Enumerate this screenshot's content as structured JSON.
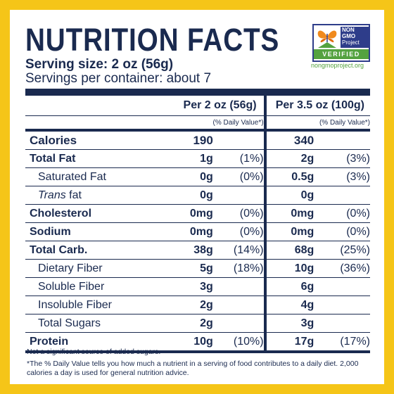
{
  "title": "NUTRITION FACTS",
  "serving_size": "Serving size: 2 oz (56g)",
  "servings_per": "Servings per container: about 7",
  "badge": {
    "line1": "NON",
    "line2": "GMO",
    "line3": "Project",
    "verified": "VERIFIED",
    "url": "nongmoproject.org",
    "colors": {
      "blue": "#2e3d8a",
      "green": "#54a23f",
      "orange": "#f08a1d"
    }
  },
  "columns": {
    "col1": "Per 2 oz (56g)",
    "col2": "Per 3.5 oz (100g)",
    "dv": "(% Daily Value*)"
  },
  "rows": [
    {
      "name": "Calories",
      "a1": "190",
      "d1": "",
      "a2": "340",
      "d2": ""
    },
    {
      "name": "Total Fat",
      "a1": "1g",
      "d1": "(1%)",
      "a2": "2g",
      "d2": "(3%)"
    },
    {
      "name": "Saturated Fat",
      "a1": "0g",
      "d1": "(0%)",
      "a2": "0.5g",
      "d2": "(3%)"
    },
    {
      "name_italic": "Trans",
      "name_rest": " fat",
      "a1": "0g",
      "d1": "",
      "a2": "0g",
      "d2": ""
    },
    {
      "name": "Cholesterol",
      "a1": "0mg",
      "d1": "(0%)",
      "a2": "0mg",
      "d2": "(0%)"
    },
    {
      "name": "Sodium",
      "a1": "0mg",
      "d1": "(0%)",
      "a2": "0mg",
      "d2": "(0%)"
    },
    {
      "name": "Total Carb.",
      "a1": "38g",
      "d1": "(14%)",
      "a2": "68g",
      "d2": "(25%)"
    },
    {
      "name": "Dietary Fiber",
      "a1": "5g",
      "d1": "(18%)",
      "a2": "10g",
      "d2": "(36%)"
    },
    {
      "name": "Soluble Fiber",
      "a1": "3g",
      "d1": "",
      "a2": "6g",
      "d2": ""
    },
    {
      "name": "Insoluble Fiber",
      "a1": "2g",
      "d1": "",
      "a2": "4g",
      "d2": ""
    },
    {
      "name": "Total Sugars",
      "a1": "2g",
      "d1": "",
      "a2": "3g",
      "d2": ""
    },
    {
      "name": "Protein",
      "a1": "10g",
      "d1": "(10%)",
      "a2": "17g",
      "d2": "(17%)"
    }
  ],
  "footnotes": {
    "added_sugars": "Not a significant source of added sugars.",
    "daily_value": "*The % Daily Value tells you how much a nutrient in a serving of food contributes to a daily diet. 2,000 calories a day is used for general nutrition advice."
  },
  "colors": {
    "navy": "#1a2a4f",
    "frame": "#f5c518"
  }
}
